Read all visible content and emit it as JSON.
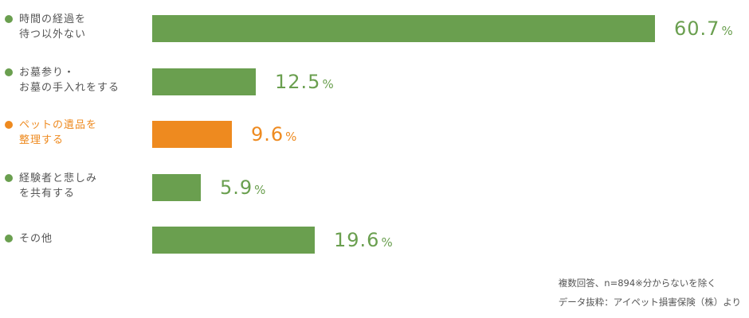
{
  "chart_data": {
    "type": "bar",
    "orientation": "horizontal",
    "categories": [
      [
        "時間の経過を",
        "待つ以外ない"
      ],
      [
        "お墓参り・",
        "お墓の手入れをする"
      ],
      [
        "ペットの遺品を",
        "整理する"
      ],
      [
        "経験者と悲しみ",
        "を共有する"
      ],
      [
        "その他"
      ]
    ],
    "values": [
      60.7,
      12.5,
      9.6,
      5.9,
      19.6
    ],
    "value_labels": [
      "60.7",
      "12.5",
      "9.6",
      "5.9",
      "19.6"
    ],
    "unit": "%",
    "highlight_index": 2,
    "colors": {
      "default": "#6a9f4f",
      "highlight": "#ee8a1f"
    },
    "xlim": [
      0,
      65
    ],
    "grid": false,
    "legend": "none"
  },
  "notes": {
    "line1": "複数回答、n=894※分からないを除く",
    "line2": "データ抜粋：アイペット損害保険（株）より"
  }
}
